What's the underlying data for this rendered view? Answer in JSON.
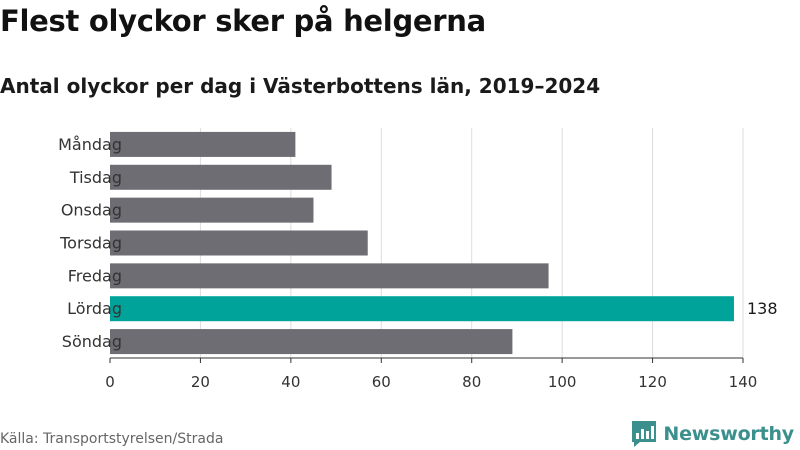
{
  "header": {
    "title": "Flest olyckor sker på helgerna",
    "subtitle": "Antal olyckor per dag i Västerbottens län, 2019–2024"
  },
  "footer": {
    "source": "Källa: Transportstyrelsen/Strada",
    "brand": "Newsworthy"
  },
  "chart_data": {
    "type": "bar",
    "orientation": "horizontal",
    "categories": [
      "Måndag",
      "Tisdag",
      "Onsdag",
      "Torsdag",
      "Fredag",
      "Lördag",
      "Söndag"
    ],
    "values": [
      41,
      49,
      45,
      57,
      97,
      138,
      89
    ],
    "highlight_index": 5,
    "labeled_value_index": 5,
    "xlim": [
      0,
      140
    ],
    "xticks": [
      0,
      20,
      40,
      60,
      80,
      100,
      120,
      140
    ],
    "grid": "vertical",
    "colors": {
      "bar": "#6e6d74",
      "highlight": "#00a39a",
      "grid": "#dddddd",
      "axis": "#333333",
      "brand": "#3b8f8c"
    }
  }
}
